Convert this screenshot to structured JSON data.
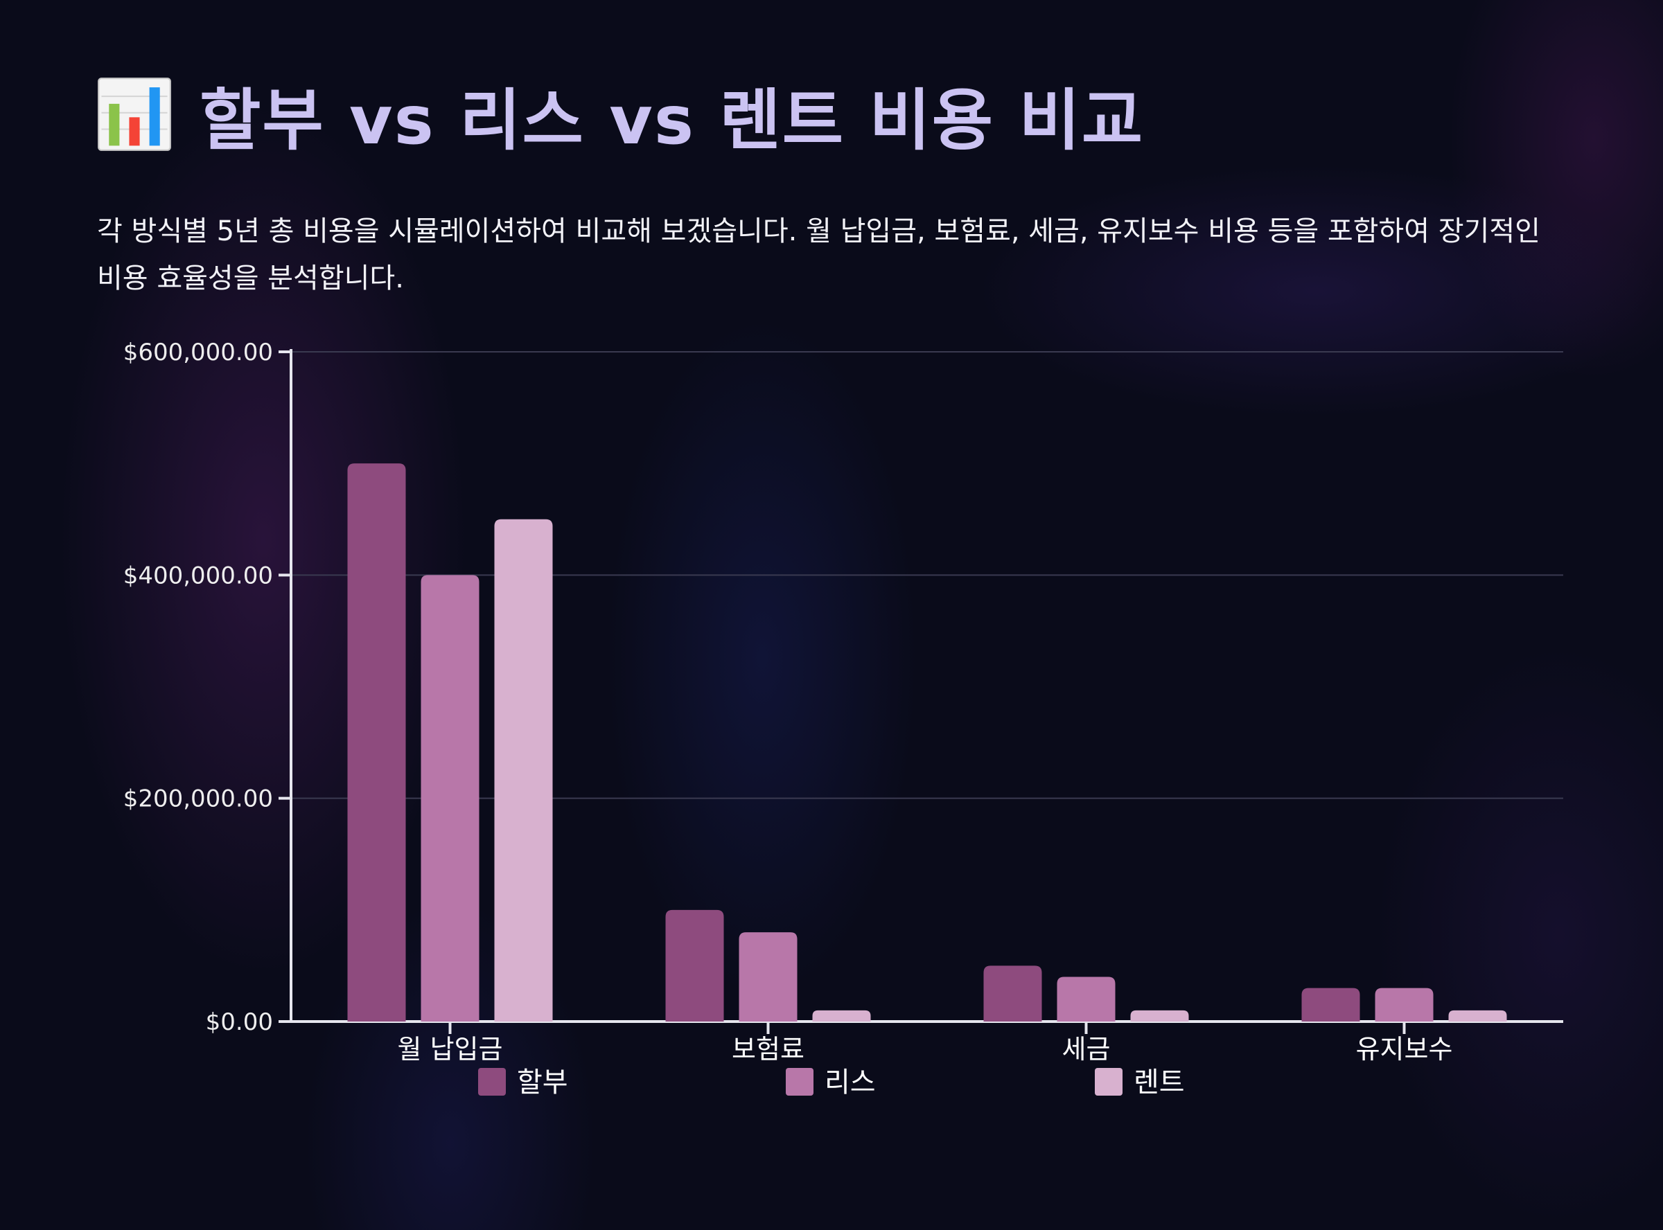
{
  "title": "할부 vs 리스 vs 렌트 비용 비교",
  "title_icon": "bar-chart-icon",
  "description": "각 방식별 5년 총 비용을 시뮬레이션하여 비교해 보겠습니다. 월 납입금, 보험료, 세금, 유지보수 비용 등을 포함하여 장기적인 비용 효율성을 분석합니다.",
  "colors": {
    "background": "#0a0b1a",
    "title": "#cbc3f2",
    "grid": "#3a3a50",
    "axis": "#e6e6ee"
  },
  "chart_data": {
    "type": "bar",
    "categories": [
      "월 납입금",
      "보험료",
      "세금",
      "유지보수"
    ],
    "series": [
      {
        "name": "할부",
        "color": "#8e4b7e",
        "values": [
          500000,
          100000,
          50000,
          30000
        ]
      },
      {
        "name": "리스",
        "color": "#b877a9",
        "values": [
          400000,
          80000,
          40000,
          30000
        ]
      },
      {
        "name": "렌트",
        "color": "#d8b1cf",
        "values": [
          450000,
          10000,
          10000,
          10000
        ]
      }
    ],
    "yticks": [
      0,
      200000,
      400000,
      600000
    ],
    "ytick_labels": [
      "$0.00",
      "$200,000.00",
      "$400,000.00",
      "$600,000.00"
    ],
    "ylim": [
      0,
      600000
    ],
    "grid": true,
    "legend_position": "bottom",
    "xlabel": "",
    "ylabel": ""
  }
}
